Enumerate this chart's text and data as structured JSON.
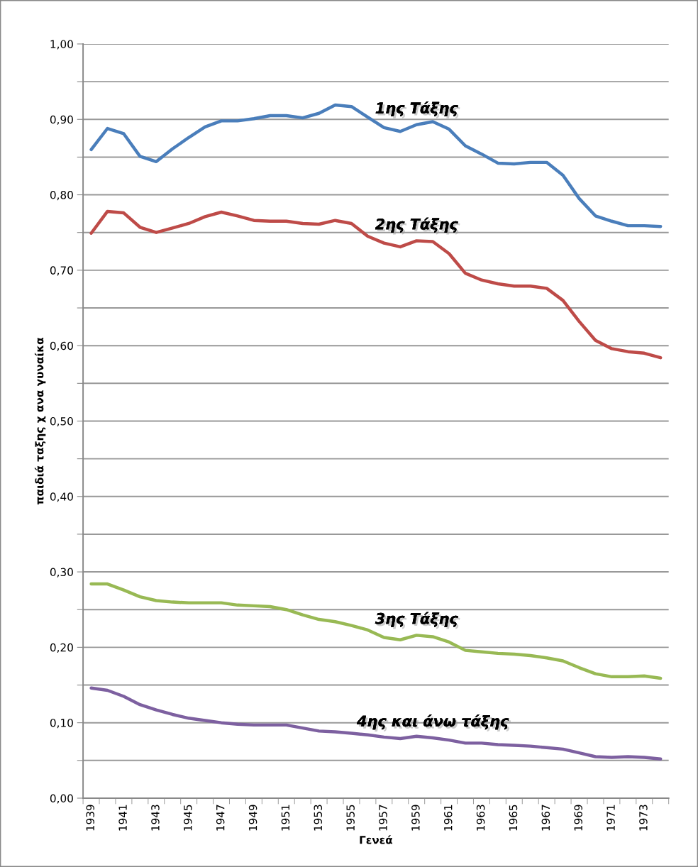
{
  "chart_data": {
    "type": "line",
    "xlabel": "Γενεά",
    "ylabel": "παιδιά ταξης χ ανα γυναίκα",
    "categories": [
      "1939",
      null,
      "1941",
      null,
      "1943",
      null,
      "1945",
      null,
      "1947",
      null,
      "1949",
      null,
      "1951",
      null,
      "1953",
      null,
      "1955",
      null,
      "1957",
      null,
      "1959",
      null,
      "1961",
      null,
      "1963",
      null,
      "1965",
      null,
      "1967",
      null,
      "1969",
      null,
      "1971",
      null,
      "1973",
      null
    ],
    "series": [
      {
        "name": "1ης Τάξης",
        "color": "#4a7ebb",
        "values": [
          0.86,
          0.888,
          0.881,
          0.851,
          0.844,
          0.861,
          0.876,
          0.89,
          0.898,
          0.898,
          0.901,
          0.905,
          0.905,
          0.902,
          0.908,
          0.919,
          0.917,
          0.903,
          0.889,
          0.884,
          0.893,
          0.897,
          0.887,
          0.865,
          0.854,
          0.842,
          0.841,
          0.843,
          0.843,
          0.826,
          0.795,
          0.772,
          0.765,
          0.759,
          0.759,
          0.758
        ]
      },
      {
        "name": "2ης Τάξης",
        "color": "#be4b48",
        "values": [
          0.749,
          0.778,
          0.776,
          0.757,
          0.75,
          0.756,
          0.762,
          0.771,
          0.777,
          0.772,
          0.766,
          0.765,
          0.765,
          0.762,
          0.761,
          0.766,
          0.762,
          0.745,
          0.736,
          0.731,
          0.739,
          0.738,
          0.722,
          0.696,
          0.687,
          0.682,
          0.679,
          0.679,
          0.676,
          0.66,
          0.632,
          0.607,
          0.596,
          0.592,
          0.59,
          0.584
        ]
      },
      {
        "name": "3ης Τάξης",
        "color": "#98b954",
        "values": [
          0.284,
          0.284,
          0.276,
          0.267,
          0.262,
          0.26,
          0.259,
          0.259,
          0.259,
          0.256,
          0.255,
          0.254,
          0.25,
          0.243,
          0.237,
          0.234,
          0.229,
          0.223,
          0.213,
          0.21,
          0.216,
          0.214,
          0.207,
          0.196,
          0.194,
          0.192,
          0.191,
          0.189,
          0.186,
          0.182,
          0.173,
          0.165,
          0.161,
          0.161,
          0.162,
          0.159
        ]
      },
      {
        "name": "4ης και άνω τάξης",
        "color": "#7d60a0",
        "values": [
          0.146,
          0.143,
          0.135,
          0.124,
          0.117,
          0.111,
          0.106,
          0.103,
          0.1,
          0.098,
          0.097,
          0.097,
          0.097,
          0.093,
          0.089,
          0.088,
          0.086,
          0.084,
          0.081,
          0.079,
          0.082,
          0.08,
          0.077,
          0.073,
          0.073,
          0.071,
          0.07,
          0.069,
          0.067,
          0.065,
          0.06,
          0.055,
          0.054,
          0.055,
          0.054,
          0.052
        ]
      }
    ],
    "ylim": [
      0,
      1
    ],
    "yticks": [
      {
        "value": 0,
        "label": "0,00"
      },
      {
        "value": 0.05,
        "label": null
      },
      {
        "value": 0.1,
        "label": "0,10"
      },
      {
        "value": 0.15,
        "label": null
      },
      {
        "value": 0.2,
        "label": "0,20"
      },
      {
        "value": 0.25,
        "label": null
      },
      {
        "value": 0.3,
        "label": "0,30"
      },
      {
        "value": 0.35,
        "label": null
      },
      {
        "value": 0.4,
        "label": "0,40"
      },
      {
        "value": 0.45,
        "label": null
      },
      {
        "value": 0.5,
        "label": "0,50"
      },
      {
        "value": 0.55,
        "label": null
      },
      {
        "value": 0.6,
        "label": "0,60"
      },
      {
        "value": 0.65,
        "label": null
      },
      {
        "value": 0.7,
        "label": "0,70"
      },
      {
        "value": 0.75,
        "label": null
      },
      {
        "value": 0.8,
        "label": "0,80"
      },
      {
        "value": 0.85,
        "label": null
      },
      {
        "value": 0.9,
        "label": "0,90"
      },
      {
        "value": 0.95,
        "label": null
      },
      {
        "value": 1,
        "label": "1,00"
      }
    ],
    "grid": "y",
    "marker": "none",
    "line_style": "solid"
  }
}
